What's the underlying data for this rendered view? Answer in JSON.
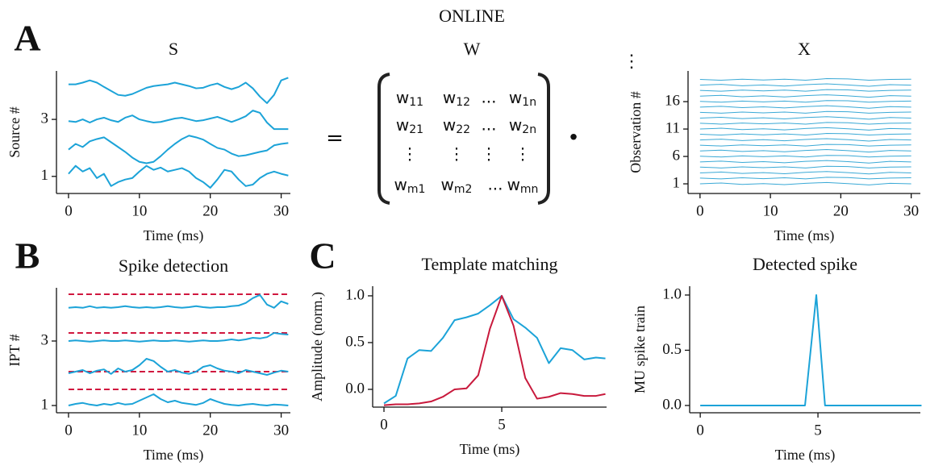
{
  "title": "ONLINE",
  "panel_labels": [
    "A",
    "B",
    "C"
  ],
  "operators": [
    "=",
    "•"
  ],
  "matrix": {
    "title": "W",
    "rows": [
      [
        {
          "main": "w",
          "sub": "11"
        },
        {
          "main": "w",
          "sub": "12"
        },
        "...",
        {
          "main": "w",
          "sub": "1n"
        }
      ],
      [
        {
          "main": "w",
          "sub": "21"
        },
        {
          "main": "w",
          "sub": "22"
        },
        "...",
        {
          "main": "w",
          "sub": "2n"
        }
      ],
      [
        "⋮",
        "⋮",
        "⋮",
        "⋮"
      ],
      [
        {
          "main": "w",
          "sub": "m1"
        },
        {
          "main": "w",
          "sub": "m2"
        },
        "...",
        {
          "main": "w",
          "sub": "mn"
        }
      ]
    ]
  },
  "chart_data": [
    {
      "type": "line",
      "title": "S",
      "x_label": "Time (ms)",
      "y_label": "Source #",
      "color": "#1ca3d8",
      "x": [
        0,
        1,
        2,
        3,
        4,
        5,
        6,
        7,
        8,
        9,
        10,
        11,
        12,
        13,
        14,
        15,
        16,
        17,
        18,
        19,
        20,
        21,
        22,
        23,
        24,
        25,
        26,
        27,
        28,
        29,
        30,
        31
      ],
      "series": [
        {
          "values": [
            1.09,
            1.37,
            1.17,
            1.29,
            0.94,
            1.09,
            0.66,
            0.8,
            0.89,
            0.94,
            1.17,
            1.37,
            1.23,
            1.31,
            1.17,
            1.23,
            1.29,
            1.17,
            0.94,
            0.8,
            0.6,
            0.89,
            1.23,
            1.17,
            0.89,
            0.66,
            0.71,
            0.94,
            1.09,
            1.17,
            1.09,
            1.03
          ]
        },
        {
          "values": [
            1.94,
            2.14,
            2.03,
            2.23,
            2.31,
            2.37,
            2.2,
            2.03,
            1.86,
            1.66,
            1.51,
            1.46,
            1.51,
            1.71,
            1.94,
            2.14,
            2.31,
            2.43,
            2.37,
            2.29,
            2.14,
            2.0,
            1.94,
            1.8,
            1.71,
            1.74,
            1.8,
            1.86,
            1.91,
            2.09,
            2.14,
            2.17
          ]
        },
        {
          "values": [
            2.94,
            2.91,
            3.0,
            2.89,
            3.0,
            3.06,
            2.97,
            2.91,
            3.06,
            3.14,
            3.0,
            2.94,
            2.89,
            2.91,
            2.97,
            3.03,
            3.06,
            3.0,
            2.94,
            2.97,
            3.03,
            3.09,
            3.0,
            2.91,
            3.0,
            3.11,
            3.31,
            3.23,
            2.89,
            2.66,
            2.66,
            2.66
          ]
        },
        {
          "values": [
            4.23,
            4.23,
            4.29,
            4.37,
            4.29,
            4.14,
            4.0,
            3.86,
            3.83,
            3.89,
            4.0,
            4.11,
            4.17,
            4.2,
            4.23,
            4.29,
            4.23,
            4.17,
            4.09,
            4.11,
            4.2,
            4.26,
            4.14,
            4.06,
            4.14,
            4.29,
            4.09,
            3.8,
            3.57,
            3.86,
            4.37,
            4.46
          ]
        }
      ],
      "xlim": [
        -1.7,
        31.3
      ],
      "ylim": [
        0.4,
        4.7
      ],
      "xticks": [
        0,
        10,
        20,
        30
      ],
      "yticks": [
        1,
        3
      ]
    },
    {
      "type": "line",
      "title": "X",
      "x_label": "Time (ms)",
      "y_label": "Observation #",
      "annotation": "⋮",
      "color": "#3aa9d6",
      "x": [
        0,
        3,
        6,
        9,
        12,
        15,
        18,
        21,
        24,
        27,
        30
      ],
      "series": [
        {
          "values": [
            1,
            1.15,
            0.9,
            1.05,
            0.85,
            1.1,
            1.25,
            1.05,
            0.8,
            1.1,
            1
          ]
        },
        {
          "values": [
            2.05,
            1.9,
            2.1,
            1.95,
            2.1,
            1.9,
            2.2,
            2.15,
            1.9,
            2.05,
            2.1
          ]
        },
        {
          "values": [
            3,
            3.15,
            2.9,
            3.05,
            2.85,
            3.1,
            3.25,
            3.05,
            2.8,
            3.1,
            3
          ]
        },
        {
          "values": [
            4.05,
            3.9,
            4.1,
            3.95,
            4.1,
            3.9,
            4.2,
            4.15,
            3.9,
            4.05,
            4.1
          ]
        },
        {
          "values": [
            5,
            5.15,
            4.9,
            5.05,
            4.85,
            5.1,
            5.25,
            5.05,
            4.8,
            5.1,
            5
          ]
        },
        {
          "values": [
            6.05,
            5.9,
            6.1,
            5.95,
            6.1,
            5.9,
            6.2,
            6.15,
            5.9,
            6.05,
            6.1
          ]
        },
        {
          "values": [
            7,
            7.15,
            6.9,
            7.05,
            6.85,
            7.1,
            7.25,
            7.05,
            6.8,
            7.1,
            7
          ]
        },
        {
          "values": [
            8.05,
            7.9,
            8.1,
            7.95,
            8.1,
            7.9,
            8.2,
            8.15,
            7.9,
            8.05,
            8.1
          ]
        },
        {
          "values": [
            9,
            9.15,
            8.9,
            9.05,
            8.85,
            9.1,
            9.25,
            9.05,
            8.8,
            9.1,
            9
          ]
        },
        {
          "values": [
            10.05,
            9.9,
            10.1,
            9.95,
            10.1,
            9.9,
            10.2,
            10.15,
            9.9,
            10.05,
            10.1
          ]
        },
        {
          "values": [
            11,
            11.15,
            10.9,
            11.05,
            10.85,
            11.1,
            11.25,
            11.05,
            10.8,
            11.1,
            11
          ]
        },
        {
          "values": [
            12.05,
            11.9,
            12.1,
            11.95,
            12.1,
            11.9,
            12.2,
            12.15,
            11.9,
            12.05,
            12.1
          ]
        },
        {
          "values": [
            13,
            13.15,
            12.9,
            13.05,
            12.85,
            13.1,
            13.25,
            13.05,
            12.8,
            13.1,
            13
          ]
        },
        {
          "values": [
            14.05,
            13.9,
            14.1,
            13.95,
            14.1,
            13.9,
            14.2,
            14.15,
            13.9,
            14.05,
            14.1
          ]
        },
        {
          "values": [
            15,
            15.15,
            14.9,
            15.05,
            14.85,
            15.1,
            15.25,
            15.05,
            14.8,
            15.1,
            15
          ]
        },
        {
          "values": [
            16.05,
            15.9,
            16.1,
            15.95,
            16.1,
            15.9,
            16.2,
            16.15,
            15.9,
            16.05,
            16.1
          ]
        },
        {
          "values": [
            17,
            17.15,
            16.9,
            17.05,
            16.85,
            17.1,
            17.25,
            17.05,
            16.8,
            17.1,
            17
          ]
        },
        {
          "values": [
            18.05,
            17.9,
            18.1,
            17.95,
            18.1,
            17.9,
            18.2,
            18.15,
            17.9,
            18.05,
            18.1
          ]
        },
        {
          "values": [
            19,
            19.15,
            18.9,
            19.05,
            18.85,
            19.1,
            19.25,
            19.05,
            18.8,
            19.1,
            19
          ]
        },
        {
          "values": [
            20.05,
            19.9,
            20.1,
            19.95,
            20.1,
            19.9,
            20.2,
            20.15,
            19.9,
            20.05,
            20.1
          ]
        }
      ],
      "xlim": [
        -1.7,
        31.3
      ],
      "ylim": [
        -0.76,
        21.6
      ],
      "xticks": [
        0,
        10,
        20,
        30
      ],
      "yticks": [
        1,
        6,
        11,
        16
      ]
    },
    {
      "type": "line",
      "title": "Spike detection",
      "x_label": "Time (ms)",
      "y_label": "IPT #",
      "color": "#1ca3d8",
      "x": [
        0,
        1,
        2,
        3,
        4,
        5,
        6,
        7,
        8,
        9,
        10,
        11,
        12,
        13,
        14,
        15,
        16,
        17,
        18,
        19,
        20,
        21,
        22,
        23,
        24,
        25,
        26,
        27,
        28,
        29,
        30,
        31
      ],
      "series": [
        {
          "values": [
            1.0,
            1.05,
            1.08,
            1.03,
            1.0,
            1.05,
            1.02,
            1.08,
            1.03,
            1.05,
            1.15,
            1.25,
            1.35,
            1.2,
            1.1,
            1.15,
            1.08,
            1.05,
            1.02,
            1.08,
            1.2,
            1.12,
            1.05,
            1.02,
            1.0,
            1.03,
            1.05,
            1.02,
            1.0,
            1.03,
            1.02,
            1.0
          ]
        },
        {
          "values": [
            2.0,
            2.05,
            2.1,
            2.0,
            2.08,
            2.12,
            1.98,
            2.15,
            2.05,
            2.1,
            2.25,
            2.45,
            2.38,
            2.2,
            2.05,
            2.1,
            2.02,
            1.98,
            2.05,
            2.2,
            2.25,
            2.15,
            2.08,
            2.05,
            2.0,
            2.1,
            2.05,
            2.0,
            1.95,
            2.02,
            2.08,
            2.05
          ]
        },
        {
          "values": [
            3.0,
            3.02,
            3.0,
            2.98,
            3.0,
            3.02,
            3.0,
            3.0,
            3.02,
            3.0,
            2.98,
            3.0,
            3.02,
            3.0,
            3.0,
            3.02,
            3.0,
            2.98,
            3.0,
            3.02,
            3.0,
            3.0,
            3.02,
            3.05,
            3.02,
            3.05,
            3.1,
            3.08,
            3.12,
            3.25,
            3.22,
            3.2
          ]
        },
        {
          "values": [
            4.03,
            4.05,
            4.03,
            4.08,
            4.03,
            4.05,
            4.03,
            4.05,
            4.08,
            4.05,
            4.03,
            4.05,
            4.03,
            4.05,
            4.08,
            4.05,
            4.03,
            4.05,
            4.08,
            4.05,
            4.03,
            4.05,
            4.05,
            4.08,
            4.1,
            4.18,
            4.33,
            4.43,
            4.13,
            4.03,
            4.23,
            4.15
          ]
        }
      ],
      "thresholds": {
        "values": [
          1.5,
          2.05,
          3.25,
          4.45
        ],
        "color": "#d0173e",
        "dashed": true
      },
      "xlim": [
        -1.7,
        31.3
      ],
      "ylim": [
        0.775,
        4.65
      ],
      "xticks": [
        0,
        10,
        20,
        30
      ],
      "yticks": [
        1,
        3
      ]
    },
    {
      "type": "line",
      "title": "Template matching",
      "x_label": "Time (ms)",
      "y_label": "Amplitude (norm.)",
      "x": [
        0,
        0.5,
        1,
        1.5,
        2,
        2.5,
        3,
        3.5,
        4,
        4.5,
        5,
        5.5,
        6,
        6.5,
        7,
        7.5,
        8,
        8.5,
        9,
        9.4
      ],
      "series": [
        {
          "color": "#1ca3d8",
          "values": [
            -0.15,
            -0.07,
            0.33,
            0.42,
            0.41,
            0.55,
            0.74,
            0.77,
            0.81,
            0.9,
            1.0,
            0.75,
            0.66,
            0.55,
            0.28,
            0.44,
            0.42,
            0.32,
            0.34,
            0.33
          ]
        },
        {
          "color": "#c8193c",
          "values": [
            -0.17,
            -0.16,
            -0.16,
            -0.15,
            -0.13,
            -0.08,
            0.0,
            0.01,
            0.15,
            0.65,
            1.0,
            0.68,
            0.12,
            -0.1,
            -0.08,
            -0.04,
            -0.05,
            -0.07,
            -0.07,
            -0.05
          ]
        }
      ],
      "xlim": [
        -0.48,
        9.45
      ],
      "ylim": [
        -0.19,
        1.103
      ],
      "xticks": [
        0,
        5
      ],
      "yticks": [
        {
          "value": 0,
          "label": "0.0"
        },
        {
          "value": 0.5,
          "label": "0.5"
        },
        {
          "value": 1,
          "label": "1.0"
        }
      ]
    },
    {
      "type": "line",
      "title": "Detected spike",
      "x_label": "Time (ms)",
      "y_label": "MU spike train",
      "color": "#1ca3d8",
      "x": [
        0,
        4.45,
        4.93,
        5.3,
        9.4
      ],
      "series": [
        {
          "values": [
            0,
            0,
            1,
            0,
            0
          ]
        }
      ],
      "xlim": [
        -0.45,
        9.35
      ],
      "ylim": [
        -0.066,
        1.08
      ],
      "xticks": [
        0,
        5
      ],
      "yticks": [
        {
          "value": 0,
          "label": "0.0"
        },
        {
          "value": 0.5,
          "label": "0.5"
        },
        {
          "value": 1,
          "label": "1.0"
        }
      ]
    }
  ]
}
